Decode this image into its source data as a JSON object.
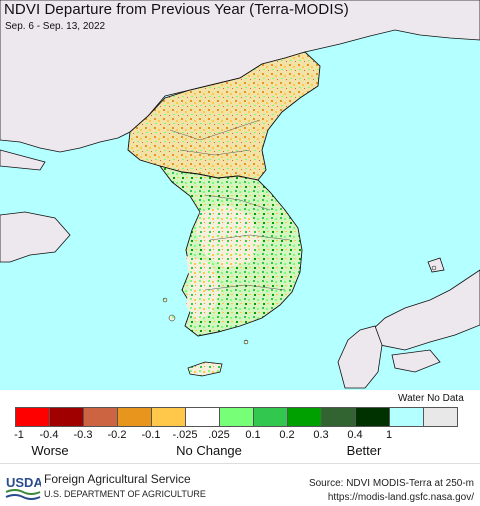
{
  "map": {
    "title": "NDVI Departure from Previous Year (Terra-MODIS)",
    "date_range": "Sep. 6 - Sep. 13, 2022"
  },
  "legend": {
    "water_no_data_label": "Water No Data",
    "swatches": [
      {
        "color": "#ff0000"
      },
      {
        "color": "#a00000"
      },
      {
        "color": "#cd6441"
      },
      {
        "color": "#e8951e"
      },
      {
        "color": "#ffc84b"
      },
      {
        "color": "#ffffff"
      },
      {
        "color": "#78ff78"
      },
      {
        "color": "#32c850"
      },
      {
        "color": "#00a000"
      },
      {
        "color": "#326432"
      },
      {
        "color": "#003200"
      },
      {
        "color": "#b4ffff"
      },
      {
        "color": "#e8e8e8"
      }
    ],
    "ticks": [
      "-1",
      "-0.4",
      "-0.3",
      "-0.2",
      "-0.1",
      "-.025",
      ".025",
      "0.1",
      "0.2",
      "0.3",
      "0.4",
      "1"
    ],
    "categories": {
      "worse": "Worse",
      "no_change": "No Change",
      "better": "Better"
    }
  },
  "footer": {
    "logo_text": "USDA",
    "org_name": "Foreign Agricultural Service",
    "dept_name": "U.S. DEPARTMENT OF AGRICULTURE",
    "source": "Source: NDVI MODIS-Terra at 250-m",
    "url": "https://modis-land.gsfc.nasa.gov/"
  },
  "colors": {
    "water": "#b4ffff",
    "no_data_land": "#ede8ee",
    "usda_blue": "#2a4b8d",
    "usda_green": "#3a8a3a"
  }
}
